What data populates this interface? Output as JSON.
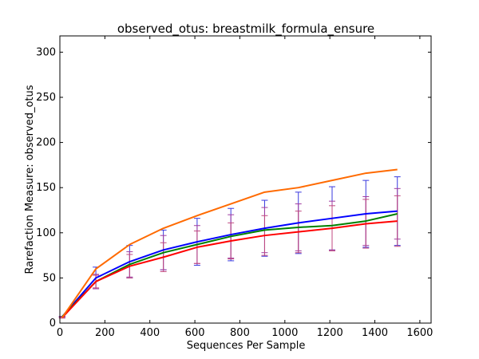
{
  "chart_data": {
    "type": "line",
    "title": "observed_otus: breastmilk_formula_ensure",
    "xlabel": "Sequences Per Sample",
    "ylabel": "Rarefaction Measure: observed_otus",
    "xlim": [
      0,
      1650
    ],
    "ylim": [
      0,
      318
    ],
    "xticks": [
      0,
      200,
      400,
      600,
      800,
      1000,
      1200,
      1400,
      1600
    ],
    "yticks": [
      0,
      50,
      100,
      150,
      200,
      250,
      300
    ],
    "grid": false,
    "legend": "none",
    "x": [
      10,
      160,
      310,
      460,
      610,
      760,
      910,
      1060,
      1210,
      1360,
      1500
    ],
    "series": [
      {
        "color": "#0000ff",
        "values": [
          7,
          50,
          68,
          81,
          90,
          98,
          105,
          111,
          116,
          121,
          124
        ],
        "errors": [
          0.5,
          12,
          18,
          22,
          26,
          29,
          31,
          34,
          35,
          37,
          38
        ],
        "error_color": "#3a3adf"
      },
      {
        "color": "#008000",
        "values": [
          7,
          46,
          65,
          78,
          87,
          96,
          103,
          106,
          108,
          113,
          121
        ],
        "errors": [
          0.5,
          8,
          14,
          19,
          21,
          24,
          25,
          26,
          27,
          27,
          28
        ],
        "error_color": "#a03ca0"
      },
      {
        "color": "#ff0000",
        "values": [
          6,
          46,
          63,
          73,
          84,
          91,
          97,
          101,
          105,
          110,
          113
        ],
        "errors": [
          0.5,
          7,
          13,
          16,
          18,
          20,
          22,
          23,
          25,
          27,
          28
        ],
        "error_color": "#c04a80"
      },
      {
        "color": "#ff6a00",
        "values": [
          6,
          60,
          87,
          105,
          119,
          132,
          145,
          150,
          158,
          166,
          170
        ],
        "errors": [
          0,
          0,
          0,
          0,
          0,
          0,
          0,
          0,
          0,
          0,
          0
        ],
        "error_color": "#ff6a00"
      }
    ]
  }
}
